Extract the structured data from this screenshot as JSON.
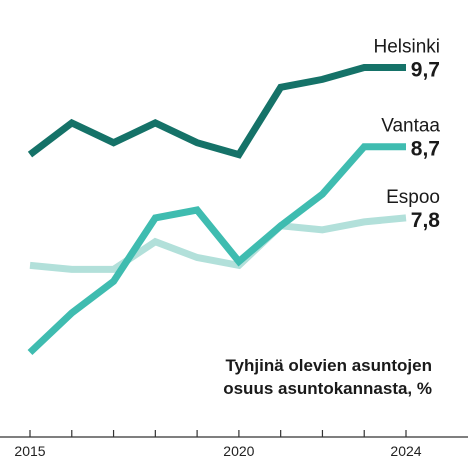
{
  "chart_data": {
    "type": "line",
    "title": "",
    "xlabel": "",
    "ylabel": "",
    "note": [
      "Tyhjinä olevien asuntojen",
      "osuus asuntokannasta, %"
    ],
    "x": [
      2015,
      2016,
      2017,
      2018,
      2019,
      2020,
      2021,
      2022,
      2023,
      2024
    ],
    "xlim": [
      2015,
      2024
    ],
    "ylim": [
      5.5,
      10.3
    ],
    "x_tick_labels": [
      {
        "x": 2015,
        "label": "2015"
      },
      {
        "x": 2020,
        "label": "2020"
      },
      {
        "x": 2024,
        "label": "2024"
      }
    ],
    "x_minor_ticks": [
      2016,
      2017,
      2018,
      2019,
      2021,
      2022,
      2023
    ],
    "grid": false,
    "legend": "end-labels",
    "series": [
      {
        "name": "Espoo",
        "value_label": "7,8",
        "color": "#b2e0da",
        "values": [
          7.2,
          7.15,
          7.15,
          7.5,
          7.3,
          7.2,
          7.7,
          7.65,
          7.75,
          7.8
        ]
      },
      {
        "name": "Vantaa",
        "value_label": "8,7",
        "color": "#3fbcb0",
        "values": [
          6.1,
          6.6,
          7.0,
          7.8,
          7.9,
          7.25,
          7.7,
          8.1,
          8.7,
          8.7
        ]
      },
      {
        "name": "Helsinki",
        "value_label": "9,7",
        "color": "#157268",
        "values": [
          8.6,
          9.0,
          8.75,
          9.0,
          8.75,
          8.6,
          9.45,
          9.55,
          9.7,
          9.7
        ]
      }
    ]
  }
}
